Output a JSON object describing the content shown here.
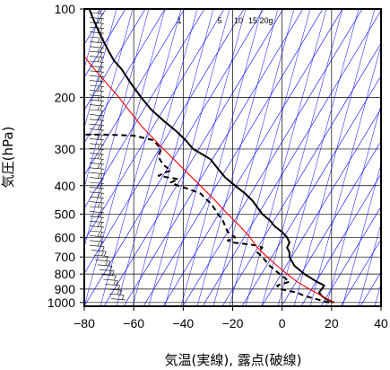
{
  "chart_data": {
    "type": "line",
    "xlabel": "気温(実線), 露点(破線)",
    "ylabel": "気圧(hPa)",
    "xlim": [
      -80,
      40
    ],
    "ylim": [
      1030,
      100
    ],
    "y_scale": "log",
    "x_ticks": [
      -80,
      -60,
      -40,
      -20,
      0,
      20,
      40
    ],
    "x_tick_labels": [
      "−80",
      "−60",
      "−40",
      "−20",
      "0",
      "20",
      "40"
    ],
    "y_ticks": [
      100,
      200,
      300,
      400,
      500,
      600,
      700,
      800,
      900,
      1000
    ],
    "y_tick_labels": [
      "100",
      "200",
      "300",
      "400",
      "500",
      "600",
      "700",
      "800",
      "900",
      "1000"
    ],
    "mixing_ratio_labels": [
      "1",
      "5",
      "10",
      "15",
      "20g"
    ],
    "colors": {
      "temperature": "#000000",
      "dewpoint": "#000000",
      "parcel": "#ff0000",
      "dry_adiabat": "#0000ff",
      "isobar_grid": "#000000"
    },
    "series": [
      {
        "points": [
          [
            21,
            1000
          ],
          [
            18,
            975
          ],
          [
            16,
            950
          ],
          [
            15,
            925
          ],
          [
            16,
            900
          ],
          [
            17,
            875
          ],
          [
            14,
            850
          ],
          [
            9,
            800
          ],
          [
            5,
            750
          ],
          [
            3,
            700
          ],
          [
            3,
            675
          ],
          [
            2,
            650
          ],
          [
            3,
            625
          ],
          [
            2,
            600
          ],
          [
            0,
            575
          ],
          [
            -3,
            550
          ],
          [
            -5,
            525
          ],
          [
            -8,
            500
          ],
          [
            -12,
            450
          ],
          [
            -15,
            425
          ],
          [
            -19,
            400
          ],
          [
            -23,
            375
          ],
          [
            -26,
            350
          ],
          [
            -29,
            325
          ],
          [
            -33,
            310
          ],
          [
            -36,
            300
          ],
          [
            -39,
            280
          ],
          [
            -43,
            260
          ],
          [
            -48,
            240
          ],
          [
            -53,
            220
          ],
          [
            -57,
            200
          ],
          [
            -61,
            180
          ],
          [
            -65,
            160
          ],
          [
            -68,
            150
          ],
          [
            -70,
            140
          ],
          [
            -72,
            130
          ],
          [
            -74,
            120
          ],
          [
            -76,
            110
          ],
          [
            -78,
            100
          ]
        ]
      },
      {
        "points": [
          [
            19,
            1000
          ],
          [
            14,
            975
          ],
          [
            9,
            950
          ],
          [
            6,
            925
          ],
          [
            -1,
            900
          ],
          [
            -2,
            875
          ],
          [
            3,
            850
          ],
          [
            -1,
            800
          ],
          [
            -5,
            750
          ],
          [
            -8,
            700
          ],
          [
            -10,
            675
          ],
          [
            -8,
            650
          ],
          [
            -10,
            640
          ],
          [
            -16,
            630
          ],
          [
            -20,
            625
          ],
          [
            -22,
            615
          ],
          [
            -19,
            600
          ],
          [
            -22,
            575
          ],
          [
            -23,
            550
          ],
          [
            -24,
            525
          ],
          [
            -26,
            500
          ],
          [
            -28,
            470
          ],
          [
            -30,
            450
          ],
          [
            -33,
            425
          ],
          [
            -38,
            410
          ],
          [
            -42,
            400
          ],
          [
            -45,
            390
          ],
          [
            -42,
            380
          ],
          [
            -50,
            370
          ],
          [
            -47,
            360
          ],
          [
            -45,
            355
          ],
          [
            -48,
            340
          ],
          [
            -50,
            320
          ],
          [
            -49,
            300
          ],
          [
            -52,
            280
          ],
          [
            -60,
            270
          ],
          [
            -72,
            268
          ],
          [
            -80,
            268
          ]
        ]
      },
      {
        "points": [
          [
            21,
            1000
          ],
          [
            16,
            950
          ],
          [
            11,
            900
          ],
          [
            6,
            850
          ],
          [
            2,
            800
          ],
          [
            -2,
            750
          ],
          [
            -6,
            700
          ],
          [
            -10,
            650
          ],
          [
            -13,
            600
          ],
          [
            -17,
            550
          ],
          [
            -22,
            500
          ],
          [
            -27,
            450
          ],
          [
            -33,
            400
          ],
          [
            -40,
            350
          ],
          [
            -48,
            300
          ],
          [
            -57,
            250
          ],
          [
            -66,
            200
          ],
          [
            -76,
            160
          ],
          [
            -80,
            145
          ]
        ]
      }
    ]
  }
}
